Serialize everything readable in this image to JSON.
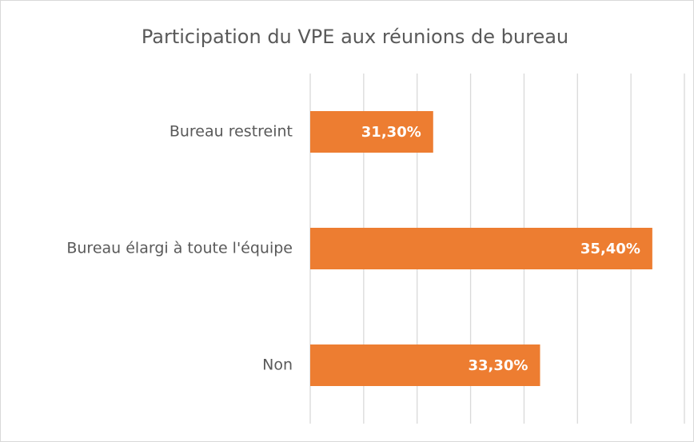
{
  "chart_data": {
    "type": "hbar",
    "title": "Participation du VPE aux réunions de bureau",
    "categories": [
      "Bureau restreint",
      "Bureau élargi à toute l'équipe",
      "Non"
    ],
    "values": [
      31.3,
      35.4,
      33.3
    ],
    "value_labels": [
      "31,30%",
      "35,40%",
      "33,30%"
    ],
    "color": "#ed7d31",
    "xlim": [
      29,
      36
    ],
    "xticks": [
      29,
      30,
      31,
      32,
      33,
      34,
      35,
      36
    ],
    "grid": true
  }
}
